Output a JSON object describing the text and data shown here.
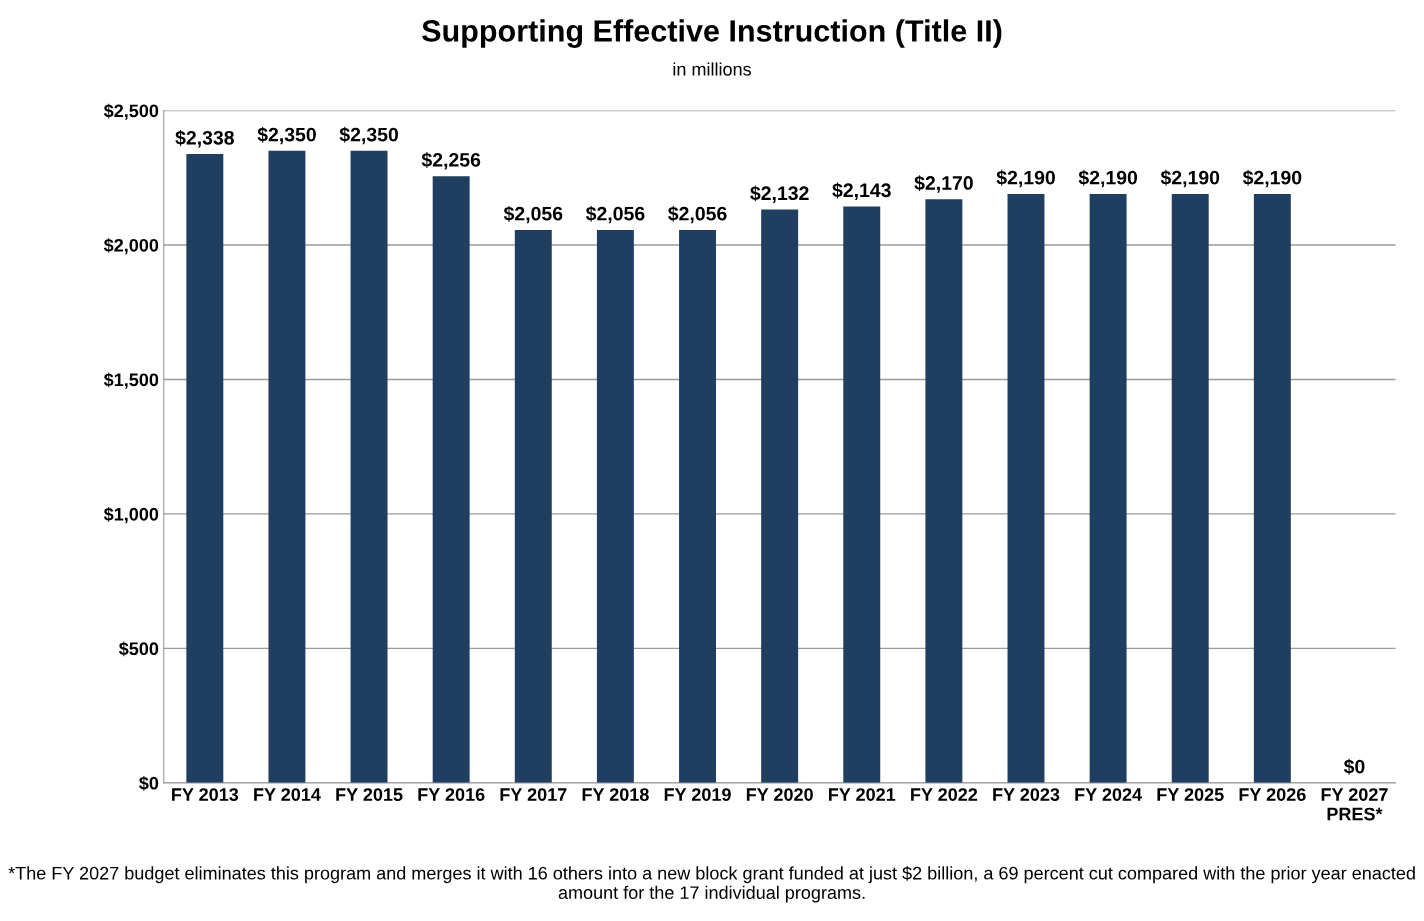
{
  "chart_data": {
    "type": "bar",
    "title": "Supporting Effective Instruction (Title II)",
    "subtitle": "in millions",
    "categories": [
      "FY 2013",
      "FY 2014",
      "FY 2015",
      "FY 2016",
      "FY 2017",
      "FY 2018",
      "FY 2019",
      "FY 2020",
      "FY 2021",
      "FY 2022",
      "FY 2023",
      "FY 2024",
      "FY 2025",
      "FY 2026",
      "FY 2027\nPRES*"
    ],
    "values": [
      2338,
      2350,
      2350,
      2256,
      2056,
      2056,
      2056,
      2132,
      2143,
      2170,
      2190,
      2190,
      2190,
      2190,
      0
    ],
    "value_labels": [
      "$2,338",
      "$2,350",
      "$2,350",
      "$2,256",
      "$2,056",
      "$2,056",
      "$2,056",
      "$2,132",
      "$2,143",
      "$2,170",
      "$2,190",
      "$2,190",
      "$2,190",
      "$2,190",
      "$0"
    ],
    "color": "#203f60",
    "ylim": [
      0,
      2500
    ],
    "yticks": [
      {
        "value": 0,
        "label": "$0"
      },
      {
        "value": 500,
        "label": "$500"
      },
      {
        "value": 1000,
        "label": "$1,000"
      },
      {
        "value": 1500,
        "label": "$1,500"
      },
      {
        "value": 2000,
        "label": "$2,000"
      },
      {
        "value": 2500,
        "label": "$2,500"
      }
    ],
    "grid": "y",
    "annotations": [
      "*The FY 2027 budget eliminates this program and merges it with 16 others into a new block grant funded at just $2 billion, a 69 percent cut compared with the prior year enacted amount for the 17 individual programs."
    ]
  }
}
